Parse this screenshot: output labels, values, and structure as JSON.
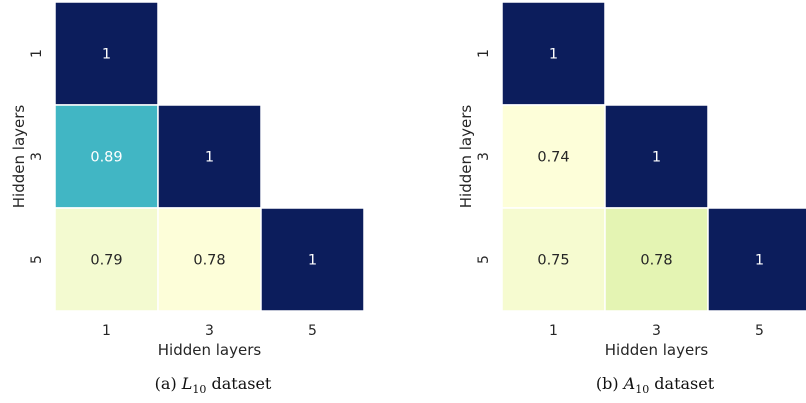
{
  "chart_data": [
    {
      "type": "heatmap",
      "caption": {
        "prefix": "(a) ",
        "var": "L",
        "sub": "10",
        "suffix": " dataset"
      },
      "xlabel": "Hidden layers",
      "ylabel": "Hidden layers",
      "x_categories": [
        "1",
        "3",
        "5"
      ],
      "y_categories": [
        "1",
        "3",
        "5"
      ],
      "cells": [
        {
          "row": 0,
          "col": 0,
          "value": 1,
          "label": "1",
          "color": "#0c1d5c",
          "text_color": "#ffffff"
        },
        {
          "row": 1,
          "col": 0,
          "value": 0.89,
          "label": "0.89",
          "color": "#41b6c4",
          "text_color": "#ffffff"
        },
        {
          "row": 1,
          "col": 1,
          "value": 1,
          "label": "1",
          "color": "#0c1d5c",
          "text_color": "#ffffff"
        },
        {
          "row": 2,
          "col": 0,
          "value": 0.79,
          "label": "0.79",
          "color": "#f3fad0",
          "text_color": "#262626"
        },
        {
          "row": 2,
          "col": 1,
          "value": 0.78,
          "label": "0.78",
          "color": "#fdfed9",
          "text_color": "#262626"
        },
        {
          "row": 2,
          "col": 2,
          "value": 1,
          "label": "1",
          "color": "#0c1d5c",
          "text_color": "#ffffff"
        }
      ],
      "mask": "upper-triangle",
      "colormap": "YlGnBu"
    },
    {
      "type": "heatmap",
      "caption": {
        "prefix": "(b) ",
        "var": "A",
        "sub": "10",
        "suffix": " dataset"
      },
      "xlabel": "Hidden layers",
      "ylabel": "Hidden layers",
      "x_categories": [
        "1",
        "3",
        "5"
      ],
      "y_categories": [
        "1",
        "3",
        "5"
      ],
      "cells": [
        {
          "row": 0,
          "col": 0,
          "value": 1,
          "label": "1",
          "color": "#0c1d5c",
          "text_color": "#ffffff"
        },
        {
          "row": 1,
          "col": 0,
          "value": 0.74,
          "label": "0.74",
          "color": "#fdfed9",
          "text_color": "#262626"
        },
        {
          "row": 1,
          "col": 1,
          "value": 1,
          "label": "1",
          "color": "#0c1d5c",
          "text_color": "#ffffff"
        },
        {
          "row": 2,
          "col": 0,
          "value": 0.75,
          "label": "0.75",
          "color": "#f6fbd0",
          "text_color": "#262626"
        },
        {
          "row": 2,
          "col": 1,
          "value": 0.78,
          "label": "0.78",
          "color": "#e4f4b3",
          "text_color": "#262626"
        },
        {
          "row": 2,
          "col": 2,
          "value": 1,
          "label": "1",
          "color": "#0c1d5c",
          "text_color": "#ffffff"
        }
      ],
      "mask": "upper-triangle",
      "colormap": "YlGnBu"
    }
  ]
}
